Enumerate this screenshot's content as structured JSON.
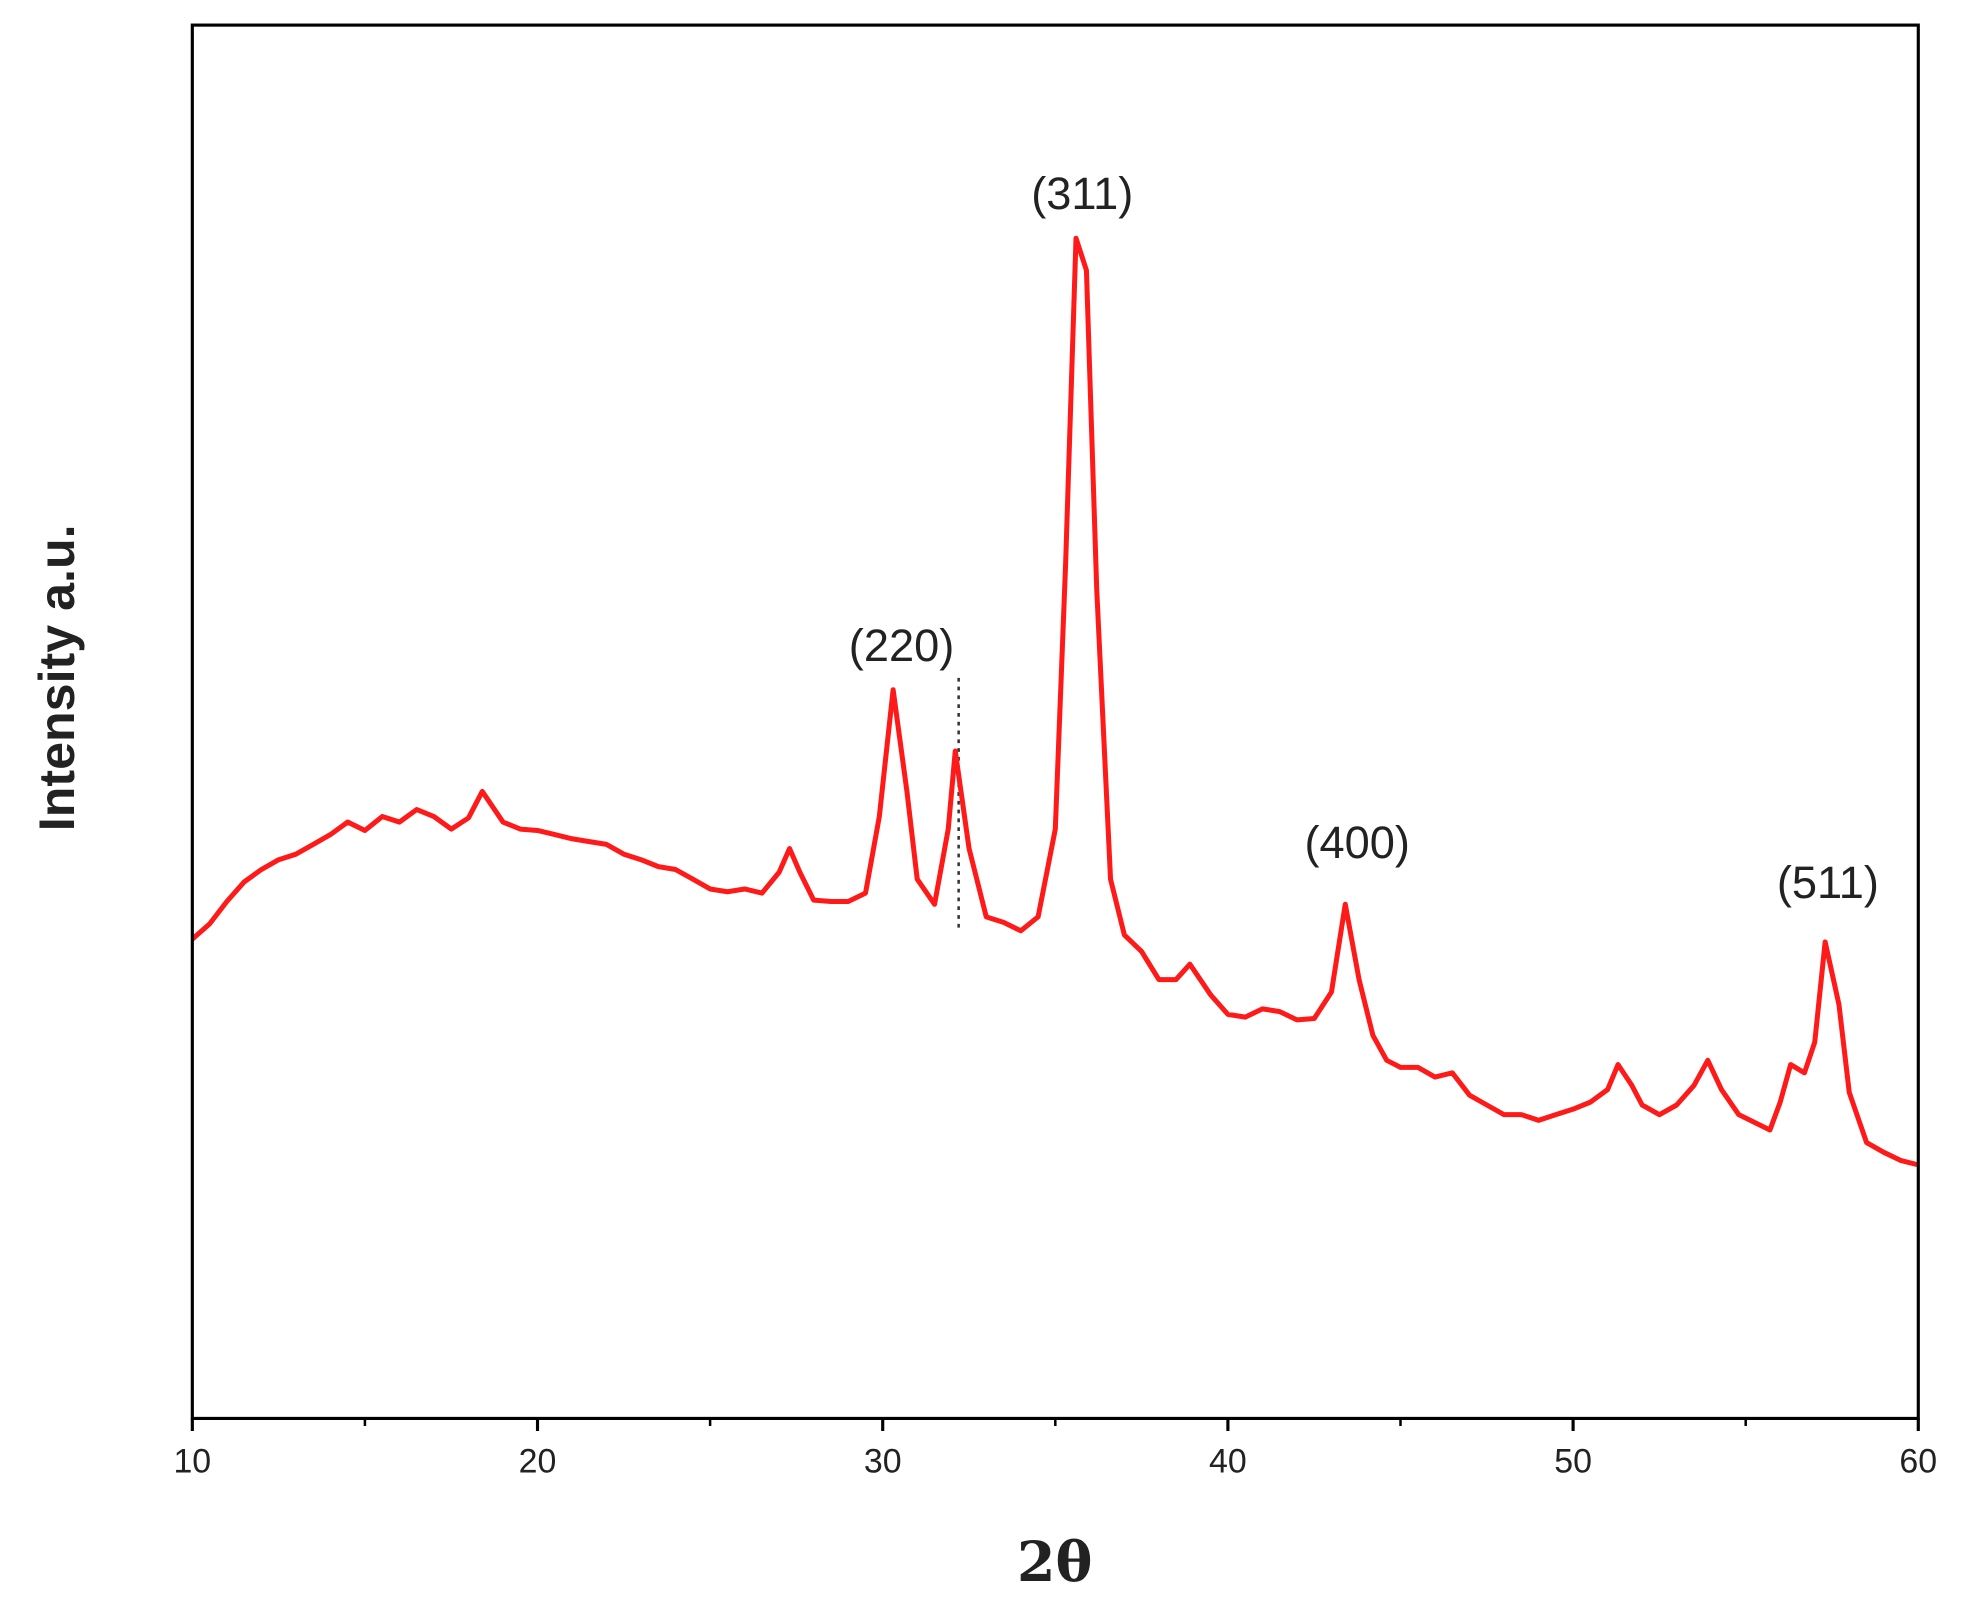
{
  "chart_data": {
    "type": "line",
    "x_label": "2θ",
    "y_label": "Intensity a.u.",
    "color": "#ff1a1a",
    "xlim": [
      10,
      60
    ],
    "xticks": [
      10,
      20,
      30,
      40,
      50,
      60
    ],
    "ylim": [
      0,
      100
    ],
    "reference_line_x": 32.2,
    "annotations": [
      "(220)",
      "(311)",
      "(400)",
      "(511)"
    ],
    "x": [
      10,
      10.5,
      11,
      11.5,
      12,
      12.5,
      13,
      13.5,
      14,
      14.5,
      15,
      15.5,
      16,
      16.5,
      17,
      17.5,
      18,
      18.4,
      19,
      19.5,
      20,
      20.5,
      21,
      21.5,
      22,
      22.5,
      23,
      23.5,
      24,
      24.5,
      25,
      25.5,
      26,
      26.5,
      27,
      27.3,
      27.6,
      28,
      28.5,
      29,
      29.5,
      29.9,
      30.3,
      30.7,
      31,
      31.5,
      31.9,
      32.1,
      32.5,
      33,
      33.5,
      34,
      34.5,
      35,
      35.3,
      35.6,
      35.9,
      36.2,
      36.6,
      37,
      37.5,
      38,
      38.5,
      38.9,
      39.5,
      40,
      40.5,
      41,
      41.5,
      42,
      42.5,
      43,
      43.4,
      43.8,
      44.2,
      44.6,
      45,
      45.5,
      46,
      46.5,
      47,
      47.5,
      48,
      48.5,
      49,
      49.5,
      50,
      50.5,
      51,
      51.3,
      51.7,
      52,
      52.5,
      53,
      53.5,
      53.9,
      54.3,
      54.8,
      55.3,
      55.7,
      56,
      56.3,
      56.7,
      57,
      57.3,
      57.7,
      58,
      58.5,
      59,
      59.5,
      60
    ],
    "values": [
      34.4,
      35.5,
      37.1,
      38.5,
      39.4,
      40.1,
      40.5,
      41.2,
      41.9,
      42.8,
      42.2,
      43.2,
      42.8,
      43.7,
      43.2,
      42.3,
      43.1,
      45.0,
      42.8,
      42.3,
      42.2,
      41.9,
      41.6,
      41.4,
      41.2,
      40.5,
      40.1,
      39.6,
      39.4,
      38.7,
      38.0,
      37.8,
      38.0,
      37.7,
      39.2,
      40.9,
      39.2,
      37.2,
      37.1,
      37.1,
      37.7,
      43.2,
      52.3,
      45.0,
      38.7,
      36.9,
      42.3,
      47.9,
      40.9,
      36.0,
      35.6,
      35.0,
      36.0,
      42.3,
      61.3,
      84.7,
      82.4,
      59.5,
      38.7,
      34.7,
      33.5,
      31.5,
      31.5,
      32.6,
      30.4,
      29.0,
      28.8,
      29.4,
      29.2,
      28.6,
      28.7,
      30.6,
      36.9,
      31.5,
      27.5,
      25.7,
      25.2,
      25.2,
      24.5,
      24.8,
      23.2,
      22.5,
      21.8,
      21.8,
      21.4,
      21.8,
      22.2,
      22.7,
      23.6,
      25.4,
      23.9,
      22.5,
      21.8,
      22.5,
      23.9,
      25.7,
      23.6,
      21.8,
      21.2,
      20.7,
      22.7,
      25.4,
      24.8,
      27.0,
      34.2,
      29.7,
      23.4,
      19.8,
      19.1,
      18.5,
      18.2
    ]
  }
}
